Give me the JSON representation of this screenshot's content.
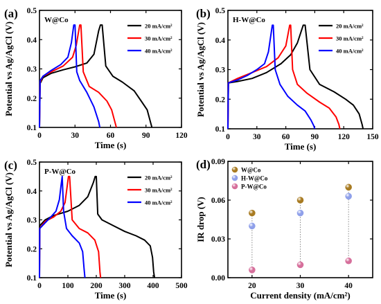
{
  "chart_data": [
    {
      "panel": "(a)",
      "type": "line",
      "sample": "W@Co",
      "xlabel": "Time (s)",
      "ylabel": "Potential vs Ag/AgCl (V)",
      "xlim": [
        0,
        120
      ],
      "ylim": [
        0.1,
        0.5
      ],
      "xticks": [
        "0",
        "30",
        "60",
        "90",
        "120"
      ],
      "yticks": [
        "0.1",
        "0.2",
        "0.3",
        "0.4",
        "0.5"
      ],
      "legend": [
        "20 mA/cm²",
        "30 mA/cm²",
        "40 mA/cm²"
      ],
      "legend_position": "top-right",
      "series": [
        {
          "name": "20 mA/cm²",
          "color": "#000000",
          "x": [
            0,
            0.5,
            3,
            10,
            20,
            30,
            40,
            46,
            50,
            51.5,
            53,
            56,
            62,
            70,
            80,
            86,
            91,
            94,
            95
          ],
          "y": [
            0.1,
            0.25,
            0.27,
            0.285,
            0.297,
            0.307,
            0.32,
            0.35,
            0.43,
            0.45,
            0.45,
            0.31,
            0.275,
            0.255,
            0.225,
            0.19,
            0.16,
            0.115,
            0.1
          ]
        },
        {
          "name": "30 mA/cm²",
          "color": "#ff0000",
          "x": [
            0,
            0.5,
            3,
            10,
            20,
            28,
            31,
            34,
            35,
            37,
            42,
            50,
            57,
            61,
            64,
            65
          ],
          "y": [
            0.1,
            0.255,
            0.275,
            0.29,
            0.31,
            0.34,
            0.38,
            0.45,
            0.45,
            0.29,
            0.24,
            0.22,
            0.19,
            0.16,
            0.115,
            0.1
          ]
        },
        {
          "name": "40 mA/cm²",
          "color": "#0000ff",
          "x": [
            0,
            0.5,
            3,
            10,
            18,
            24,
            27,
            29,
            30,
            31.5,
            34,
            40,
            46,
            50,
            51
          ],
          "y": [
            0.1,
            0.26,
            0.275,
            0.295,
            0.315,
            0.34,
            0.39,
            0.45,
            0.45,
            0.29,
            0.26,
            0.22,
            0.17,
            0.12,
            0.1
          ]
        }
      ]
    },
    {
      "panel": "(b)",
      "type": "line",
      "sample": "H-W@Co",
      "xlabel": "Time (s)",
      "ylabel": "Potential vs Ag/AgCl (V)",
      "xlim": [
        0,
        150
      ],
      "ylim": [
        0.1,
        0.5
      ],
      "xticks": [
        "0",
        "30",
        "60",
        "90",
        "120",
        "150"
      ],
      "yticks": [
        "0.1",
        "0.2",
        "0.3",
        "0.4",
        "0.5"
      ],
      "legend": [
        "20 mA/cm²",
        "30 mA/cm²",
        "40 mA/cm²"
      ],
      "legend_position": "top-right",
      "series": [
        {
          "name": "20 mA/cm²",
          "color": "#000000",
          "x": [
            0,
            0.5,
            10,
            25,
            40,
            55,
            65,
            72,
            76,
            78,
            80,
            85,
            95,
            110,
            122,
            130,
            136,
            139,
            140
          ],
          "y": [
            0.1,
            0.255,
            0.26,
            0.27,
            0.29,
            0.32,
            0.35,
            0.39,
            0.43,
            0.45,
            0.45,
            0.3,
            0.25,
            0.225,
            0.2,
            0.18,
            0.15,
            0.115,
            0.1
          ]
        },
        {
          "name": "30 mA/cm²",
          "color": "#ff0000",
          "x": [
            0,
            0.5,
            10,
            25,
            40,
            52,
            60,
            64,
            65,
            67,
            72,
            82,
            95,
            105,
            112,
            115,
            116
          ],
          "y": [
            0.1,
            0.255,
            0.27,
            0.29,
            0.31,
            0.34,
            0.38,
            0.45,
            0.45,
            0.3,
            0.25,
            0.22,
            0.19,
            0.17,
            0.14,
            0.115,
            0.1
          ]
        },
        {
          "name": "40 mA/cm²",
          "color": "#0000ff",
          "x": [
            0,
            0.5,
            10,
            20,
            30,
            38,
            42,
            46,
            47,
            49,
            54,
            62,
            72,
            80,
            86,
            89,
            90
          ],
          "y": [
            0.1,
            0.255,
            0.265,
            0.28,
            0.3,
            0.32,
            0.36,
            0.45,
            0.45,
            0.3,
            0.25,
            0.21,
            0.18,
            0.16,
            0.13,
            0.11,
            0.1
          ]
        }
      ]
    },
    {
      "panel": "(c)",
      "type": "line",
      "sample": "P-W@Co",
      "xlabel": "Time (s)",
      "ylabel": "Potential vs Ag/AgCl (V)",
      "xlim": [
        0,
        500
      ],
      "ylim": [
        0.1,
        0.5
      ],
      "xticks": [
        "0",
        "100",
        "200",
        "300",
        "400",
        "500"
      ],
      "yticks": [
        "0.1",
        "0.2",
        "0.3",
        "0.4",
        "0.5"
      ],
      "legend": [
        "20 mA/cm²",
        "30 mA/cm²",
        "40 mA/cm²"
      ],
      "legend_position": "top-right",
      "series": [
        {
          "name": "20 mA/cm²",
          "color": "#000000",
          "x": [
            0,
            1,
            20,
            50,
            100,
            140,
            170,
            190,
            196,
            200,
            205,
            220,
            260,
            300,
            340,
            370,
            390,
            398,
            402,
            405
          ],
          "y": [
            0.1,
            0.28,
            0.3,
            0.315,
            0.33,
            0.35,
            0.38,
            0.43,
            0.45,
            0.45,
            0.32,
            0.3,
            0.28,
            0.26,
            0.245,
            0.23,
            0.21,
            0.17,
            0.12,
            0.1
          ]
        },
        {
          "name": "30 mA/cm²",
          "color": "#ff0000",
          "x": [
            0,
            1,
            20,
            50,
            75,
            90,
            98,
            102,
            106,
            115,
            140,
            170,
            195,
            208,
            213,
            215
          ],
          "y": [
            0.1,
            0.27,
            0.295,
            0.31,
            0.33,
            0.36,
            0.42,
            0.45,
            0.45,
            0.3,
            0.27,
            0.255,
            0.23,
            0.19,
            0.12,
            0.1
          ]
        },
        {
          "name": "40 mA/cm²",
          "color": "#0000ff",
          "x": [
            0,
            1,
            20,
            40,
            58,
            70,
            76,
            80,
            85,
            95,
            115,
            140,
            152,
            157,
            160
          ],
          "y": [
            0.1,
            0.27,
            0.29,
            0.31,
            0.33,
            0.37,
            0.42,
            0.45,
            0.33,
            0.27,
            0.245,
            0.22,
            0.19,
            0.13,
            0.1
          ]
        }
      ]
    },
    {
      "panel": "(d)",
      "type": "scatter",
      "xlabel": "Current density (mA/cm²)",
      "ylabel": "IR drop (V)",
      "xlim": [
        15,
        45
      ],
      "ylim": [
        0,
        0.09
      ],
      "xticks": [
        "20",
        "30",
        "40"
      ],
      "yticks": [
        "0.00",
        "0.03",
        "0.06",
        "0.09"
      ],
      "legend": [
        "W@Co",
        "H-W@Co",
        "P-W@Co"
      ],
      "legend_position": "top-left",
      "categories": [
        20,
        30,
        40
      ],
      "series": [
        {
          "name": "W@Co",
          "color": "#a87b22",
          "values": [
            0.05,
            0.06,
            0.07
          ]
        },
        {
          "name": "H-W@Co",
          "color": "#8fa0ea",
          "values": [
            0.04,
            0.05,
            0.063
          ]
        },
        {
          "name": "P-W@Co",
          "color": "#d66f9b",
          "values": [
            0.006,
            0.01,
            0.013
          ]
        }
      ]
    }
  ]
}
